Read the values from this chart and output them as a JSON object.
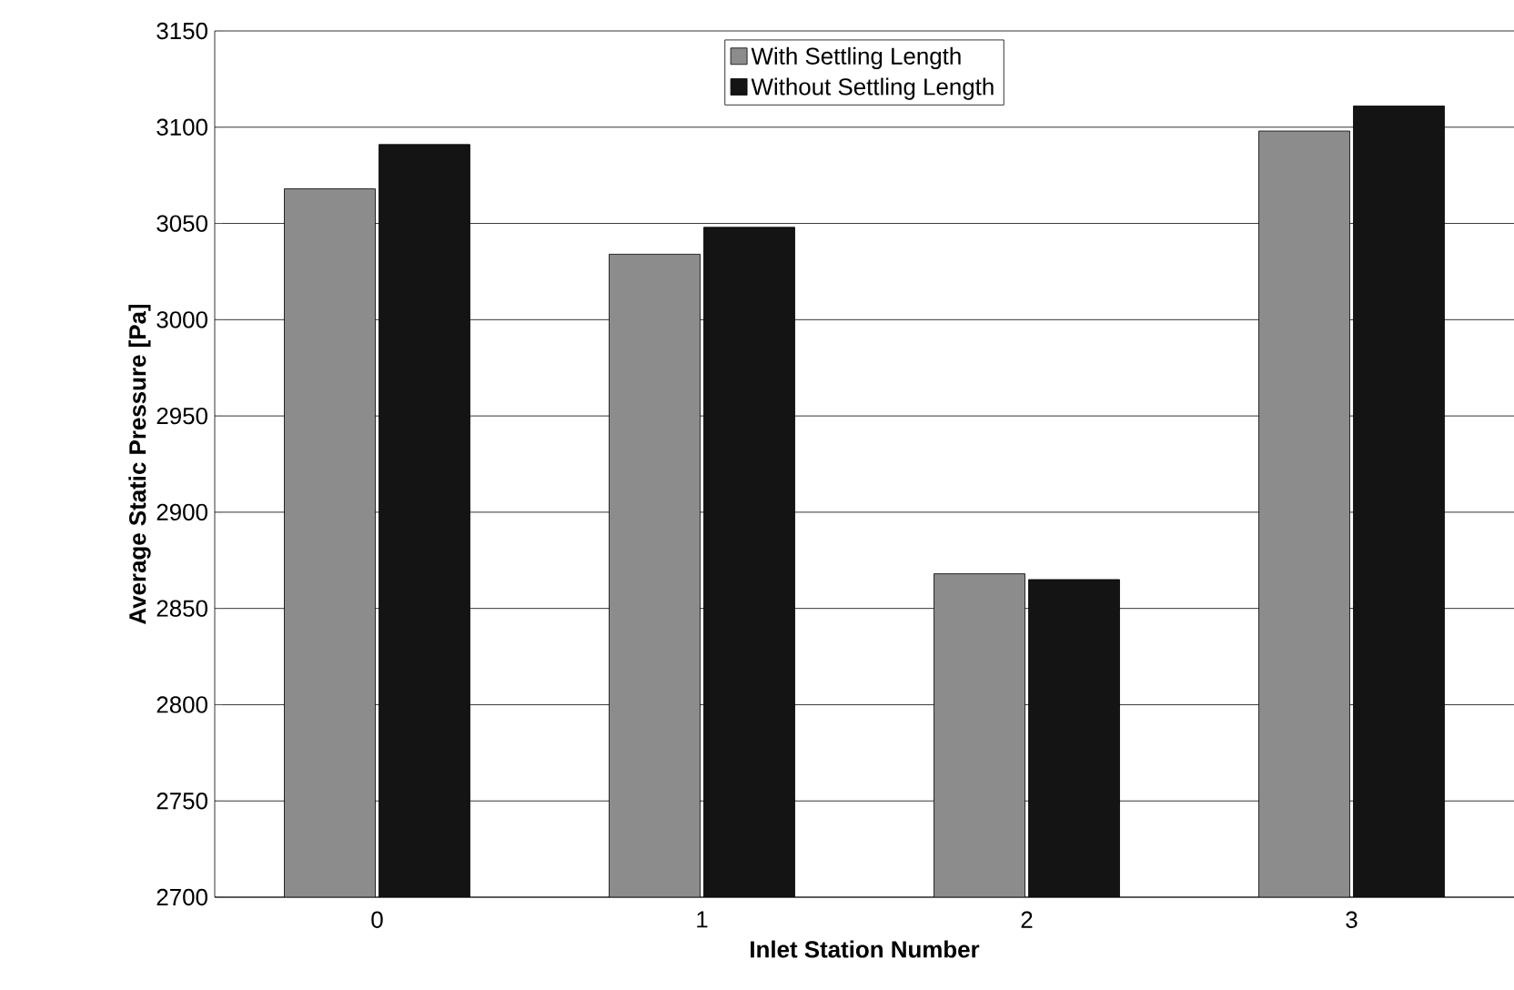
{
  "chart_data": {
    "type": "bar",
    "xlabel": "Inlet Station Number",
    "ylabel": "Average Static Pressure [Pa]",
    "categories": [
      "0",
      "1",
      "2",
      "3"
    ],
    "series": [
      {
        "name": "With Settling Length",
        "color": "#8c8c8c",
        "values": [
          3068,
          3034,
          2868,
          3098
        ]
      },
      {
        "name": "Without Settling Length",
        "color": "#141414",
        "values": [
          3091,
          3048,
          2865,
          3111
        ]
      }
    ],
    "ylim": [
      2700,
      3150
    ],
    "yticks": [
      2700,
      2750,
      2800,
      2850,
      2900,
      2950,
      3000,
      3050,
      3100,
      3150
    ],
    "grid": "y",
    "legend": "top"
  }
}
